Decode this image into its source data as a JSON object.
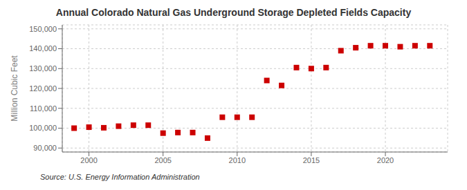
{
  "chart_data": {
    "type": "scatter",
    "title": "Annual Colorado Natural Gas Underground Storage Depleted Fields Capacity",
    "ylabel": "Million Cubic Feet",
    "source": "Source: U.S. Energy Information Administration",
    "x": [
      1999,
      2000,
      2001,
      2002,
      2003,
      2004,
      2005,
      2006,
      2007,
      2008,
      2009,
      2010,
      2011,
      2012,
      2013,
      2014,
      2015,
      2016,
      2017,
      2018,
      2019,
      2020,
      2021,
      2022,
      2023
    ],
    "values": [
      100000,
      100500,
      100200,
      101000,
      101500,
      101500,
      97500,
      97800,
      97800,
      95000,
      105500,
      105500,
      105500,
      124000,
      121500,
      130500,
      130000,
      130500,
      139000,
      140500,
      141500,
      141500,
      141000,
      141500,
      141500
    ],
    "color": "#cc0000",
    "marker": "square",
    "xlim": [
      1998.2,
      2024.2
    ],
    "xticks": [
      2000,
      2005,
      2010,
      2015,
      2020
    ],
    "ylim": [
      88000,
      152000
    ],
    "yticks": [
      {
        "value": 90000,
        "label": "90,000"
      },
      {
        "value": 100000,
        "label": "100,000"
      },
      {
        "value": 110000,
        "label": "110,000"
      },
      {
        "value": 120000,
        "label": "120,000"
      },
      {
        "value": 130000,
        "label": "130,000"
      },
      {
        "value": 140000,
        "label": "140,000"
      },
      {
        "value": 150000,
        "label": "150,000"
      }
    ],
    "grid": true
  }
}
